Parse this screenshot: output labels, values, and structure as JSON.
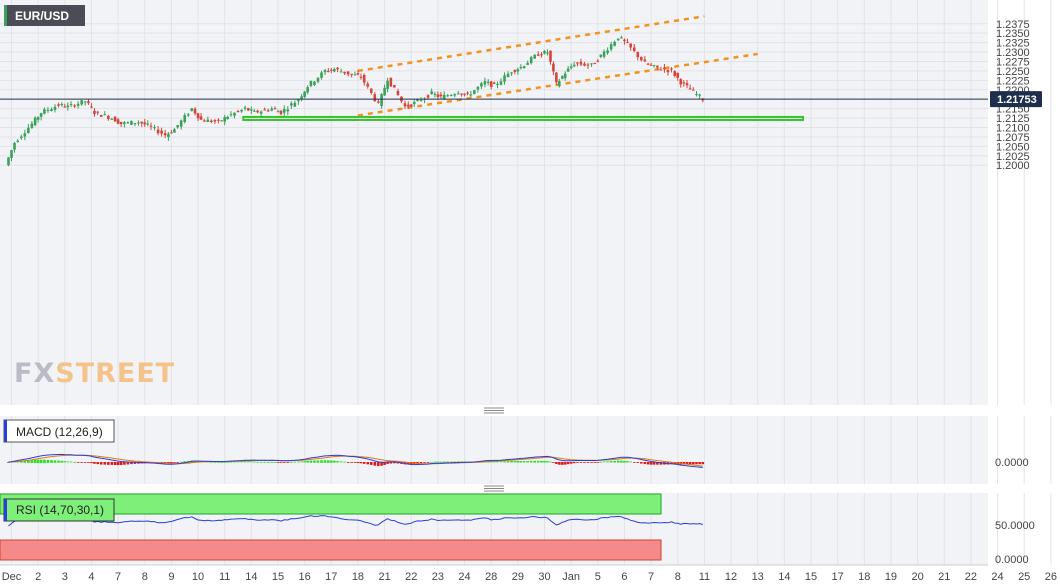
{
  "symbol": "EUR/USD",
  "watermark": {
    "part1": "FX",
    "part2": "STREET"
  },
  "price_axis": {
    "ticks": [
      "1.2375",
      "1.2350",
      "1.2325",
      "1.2300",
      "1.2275",
      "1.2250",
      "1.2225",
      "1.2200",
      "1.2150",
      "1.2125",
      "1.2100",
      "1.2075",
      "1.2050",
      "1.2025",
      "1.2000"
    ],
    "current_price_label": "1.21753",
    "current_price": 1.21753
  },
  "x_axis": {
    "labels": [
      "Dec",
      "2",
      "3",
      "4",
      "7",
      "8",
      "9",
      "10",
      "11",
      "14",
      "15",
      "16",
      "17",
      "18",
      "21",
      "22",
      "23",
      "24",
      "28",
      "29",
      "30",
      "Jan",
      "5",
      "6",
      "7",
      "8",
      "11",
      "12",
      "13",
      "14",
      "15",
      "17",
      "18",
      "19",
      "20",
      "21",
      "22",
      "24",
      "25",
      "26"
    ]
  },
  "colors": {
    "up": "#3aa15a",
    "down": "#d8433a",
    "channel": "#f5921e",
    "support_box": "#35c22c",
    "macd_line": "#2a3fd6",
    "signal_line": "#e07a16",
    "rsi_line": "#2a3fd6",
    "rsi_overbought_fill": "#7ef07a",
    "rsi_oversold_fill": "#f48a8a",
    "current_price_bg": "#1e2e4d"
  },
  "macd_panel": {
    "label": "MACD (12,26,9)",
    "axis_label": "0.0000"
  },
  "rsi_panel": {
    "label": "RSI (14,70,30,1)",
    "axis_labels": [
      "50.0000",
      "0.0000"
    ]
  },
  "chart_data": [
    {
      "type": "candlestick",
      "title": "EUR/USD",
      "ylim": [
        1.1975,
        1.2395
      ],
      "x_tick_labels": [
        "Dec",
        "2",
        "3",
        "4",
        "7",
        "8",
        "9",
        "10",
        "11",
        "14",
        "15",
        "16",
        "17",
        "18",
        "21",
        "22",
        "23",
        "24",
        "28",
        "29",
        "30",
        "Jan",
        "5",
        "6",
        "7",
        "8",
        "11",
        "12",
        "13",
        "14",
        "15",
        "17",
        "18",
        "19",
        "20",
        "21",
        "22",
        "24",
        "25",
        "26"
      ],
      "grid": true,
      "close_path": [
        {
          "date": "Dec 1",
          "close": 1.2
        },
        {
          "date": "Dec 1",
          "close": 1.206
        },
        {
          "date": "Dec 2",
          "close": 1.211
        },
        {
          "date": "Dec 2",
          "close": 1.214
        },
        {
          "date": "Dec 3",
          "close": 1.216
        },
        {
          "date": "Dec 3",
          "close": 1.2155
        },
        {
          "date": "Dec 4",
          "close": 1.217
        },
        {
          "date": "Dec 4",
          "close": 1.214
        },
        {
          "date": "Dec 7",
          "close": 1.2125
        },
        {
          "date": "Dec 7",
          "close": 1.211
        },
        {
          "date": "Dec 8",
          "close": 1.2115
        },
        {
          "date": "Dec 8",
          "close": 1.2105
        },
        {
          "date": "Dec 9",
          "close": 1.208
        },
        {
          "date": "Dec 9",
          "close": 1.2095
        },
        {
          "date": "Dec 10",
          "close": 1.215
        },
        {
          "date": "Dec 10",
          "close": 1.212
        },
        {
          "date": "Dec 11",
          "close": 1.2115
        },
        {
          "date": "Dec 11",
          "close": 1.213
        },
        {
          "date": "Dec 14",
          "close": 1.215
        },
        {
          "date": "Dec 14",
          "close": 1.214
        },
        {
          "date": "Dec 15",
          "close": 1.215
        },
        {
          "date": "Dec 15",
          "close": 1.214
        },
        {
          "date": "Dec 16",
          "close": 1.2175
        },
        {
          "date": "Dec 16",
          "close": 1.221
        },
        {
          "date": "Dec 17",
          "close": 1.225
        },
        {
          "date": "Dec 17",
          "close": 1.2255
        },
        {
          "date": "Dec 18",
          "close": 1.224
        },
        {
          "date": "Dec 18",
          "close": 1.2235
        },
        {
          "date": "Dec 21",
          "close": 1.216
        },
        {
          "date": "Dec 21",
          "close": 1.223
        },
        {
          "date": "Dec 22",
          "close": 1.2155
        },
        {
          "date": "Dec 22",
          "close": 1.2165
        },
        {
          "date": "Dec 23",
          "close": 1.219
        },
        {
          "date": "Dec 23",
          "close": 1.218
        },
        {
          "date": "Dec 24",
          "close": 1.2195
        },
        {
          "date": "Dec 24",
          "close": 1.2185
        },
        {
          "date": "Dec 28",
          "close": 1.222
        },
        {
          "date": "Dec 28",
          "close": 1.221
        },
        {
          "date": "Dec 29",
          "close": 1.225
        },
        {
          "date": "Dec 29",
          "close": 1.226
        },
        {
          "date": "Dec 30",
          "close": 1.2295
        },
        {
          "date": "Dec 30",
          "close": 1.23
        },
        {
          "date": "Dec 31",
          "close": 1.2215
        },
        {
          "date": "Jan 4",
          "close": 1.2245
        },
        {
          "date": "Jan 4",
          "close": 1.227
        },
        {
          "date": "Jan 5",
          "close": 1.2265
        },
        {
          "date": "Jan 5",
          "close": 1.229
        },
        {
          "date": "Jan 6",
          "close": 1.234
        },
        {
          "date": "Jan 6",
          "close": 1.232
        },
        {
          "date": "Jan 7",
          "close": 1.227
        },
        {
          "date": "Jan 7",
          "close": 1.226
        },
        {
          "date": "Jan 8",
          "close": 1.225
        },
        {
          "date": "Jan 8",
          "close": 1.222
        },
        {
          "date": "Jan 11",
          "close": 1.21753
        }
      ],
      "annotations": [
        {
          "kind": "ascending_channel_upper",
          "from": {
            "date": "Dec 18",
            "price": 1.225
          },
          "to": {
            "date": "Jan 11",
            "price": 1.2395
          }
        },
        {
          "kind": "ascending_channel_lower",
          "from": {
            "date": "Dec 18",
            "price": 1.2132
          },
          "to": {
            "date": "Jan 13",
            "price": 1.2295
          }
        },
        {
          "kind": "support_zone",
          "from_date": "Dec 14",
          "to_date": "Jan 15",
          "price_range": [
            1.212,
            1.2128
          ]
        },
        {
          "kind": "current_price_line",
          "price": 1.21753
        }
      ]
    },
    {
      "type": "line",
      "title": "MACD (12,26,9)",
      "series": [],
      "zero_label": "0.0000"
    },
    {
      "type": "line",
      "title": "RSI (14,70,30,1)",
      "levels": [
        70,
        30
      ],
      "y_labels": [
        "50.0000",
        "0.0000"
      ]
    }
  ]
}
